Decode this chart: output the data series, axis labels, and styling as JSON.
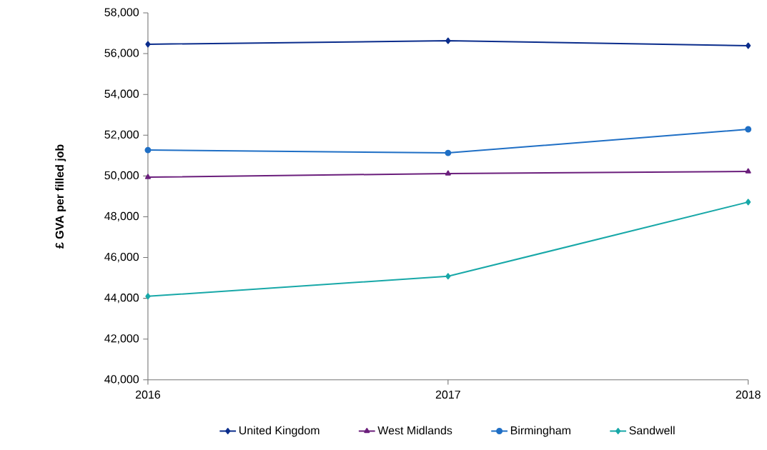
{
  "chart_data": {
    "type": "line",
    "ylabel": "£ GVA per filled job",
    "x": [
      2016,
      2017,
      2018
    ],
    "xlim": [
      2016,
      2018
    ],
    "xticks": [
      2016,
      2017,
      2018
    ],
    "ylim": [
      40000,
      58000
    ],
    "yticks": [
      {
        "value": 40000,
        "label": "40,000"
      },
      {
        "value": 42000,
        "label": "42,000"
      },
      {
        "value": 44000,
        "label": "44,000"
      },
      {
        "value": 46000,
        "label": "46,000"
      },
      {
        "value": 48000,
        "label": "48,000"
      },
      {
        "value": 50000,
        "label": "50,000"
      },
      {
        "value": 52000,
        "label": "52,000"
      },
      {
        "value": 54000,
        "label": "54,000"
      },
      {
        "value": 56000,
        "label": "56,000"
      },
      {
        "value": 58000,
        "label": "58,000"
      }
    ],
    "grid": false,
    "legend": "bottom",
    "line_style": "solid",
    "series": [
      {
        "name": "United Kingdom",
        "color": "#0b2d8c",
        "marker": "diamond",
        "values": [
          56460,
          56630,
          56390
        ]
      },
      {
        "name": "West Midlands",
        "color": "#6b1f7c",
        "marker": "triangle",
        "values": [
          49940,
          50120,
          50220
        ]
      },
      {
        "name": "Birmingham",
        "color": "#1f6fc5",
        "marker": "circle",
        "values": [
          51270,
          51130,
          52290
        ]
      },
      {
        "name": "Sandwell",
        "color": "#18a8a8",
        "marker": "diamond",
        "values": [
          44100,
          45080,
          48720
        ]
      }
    ]
  }
}
